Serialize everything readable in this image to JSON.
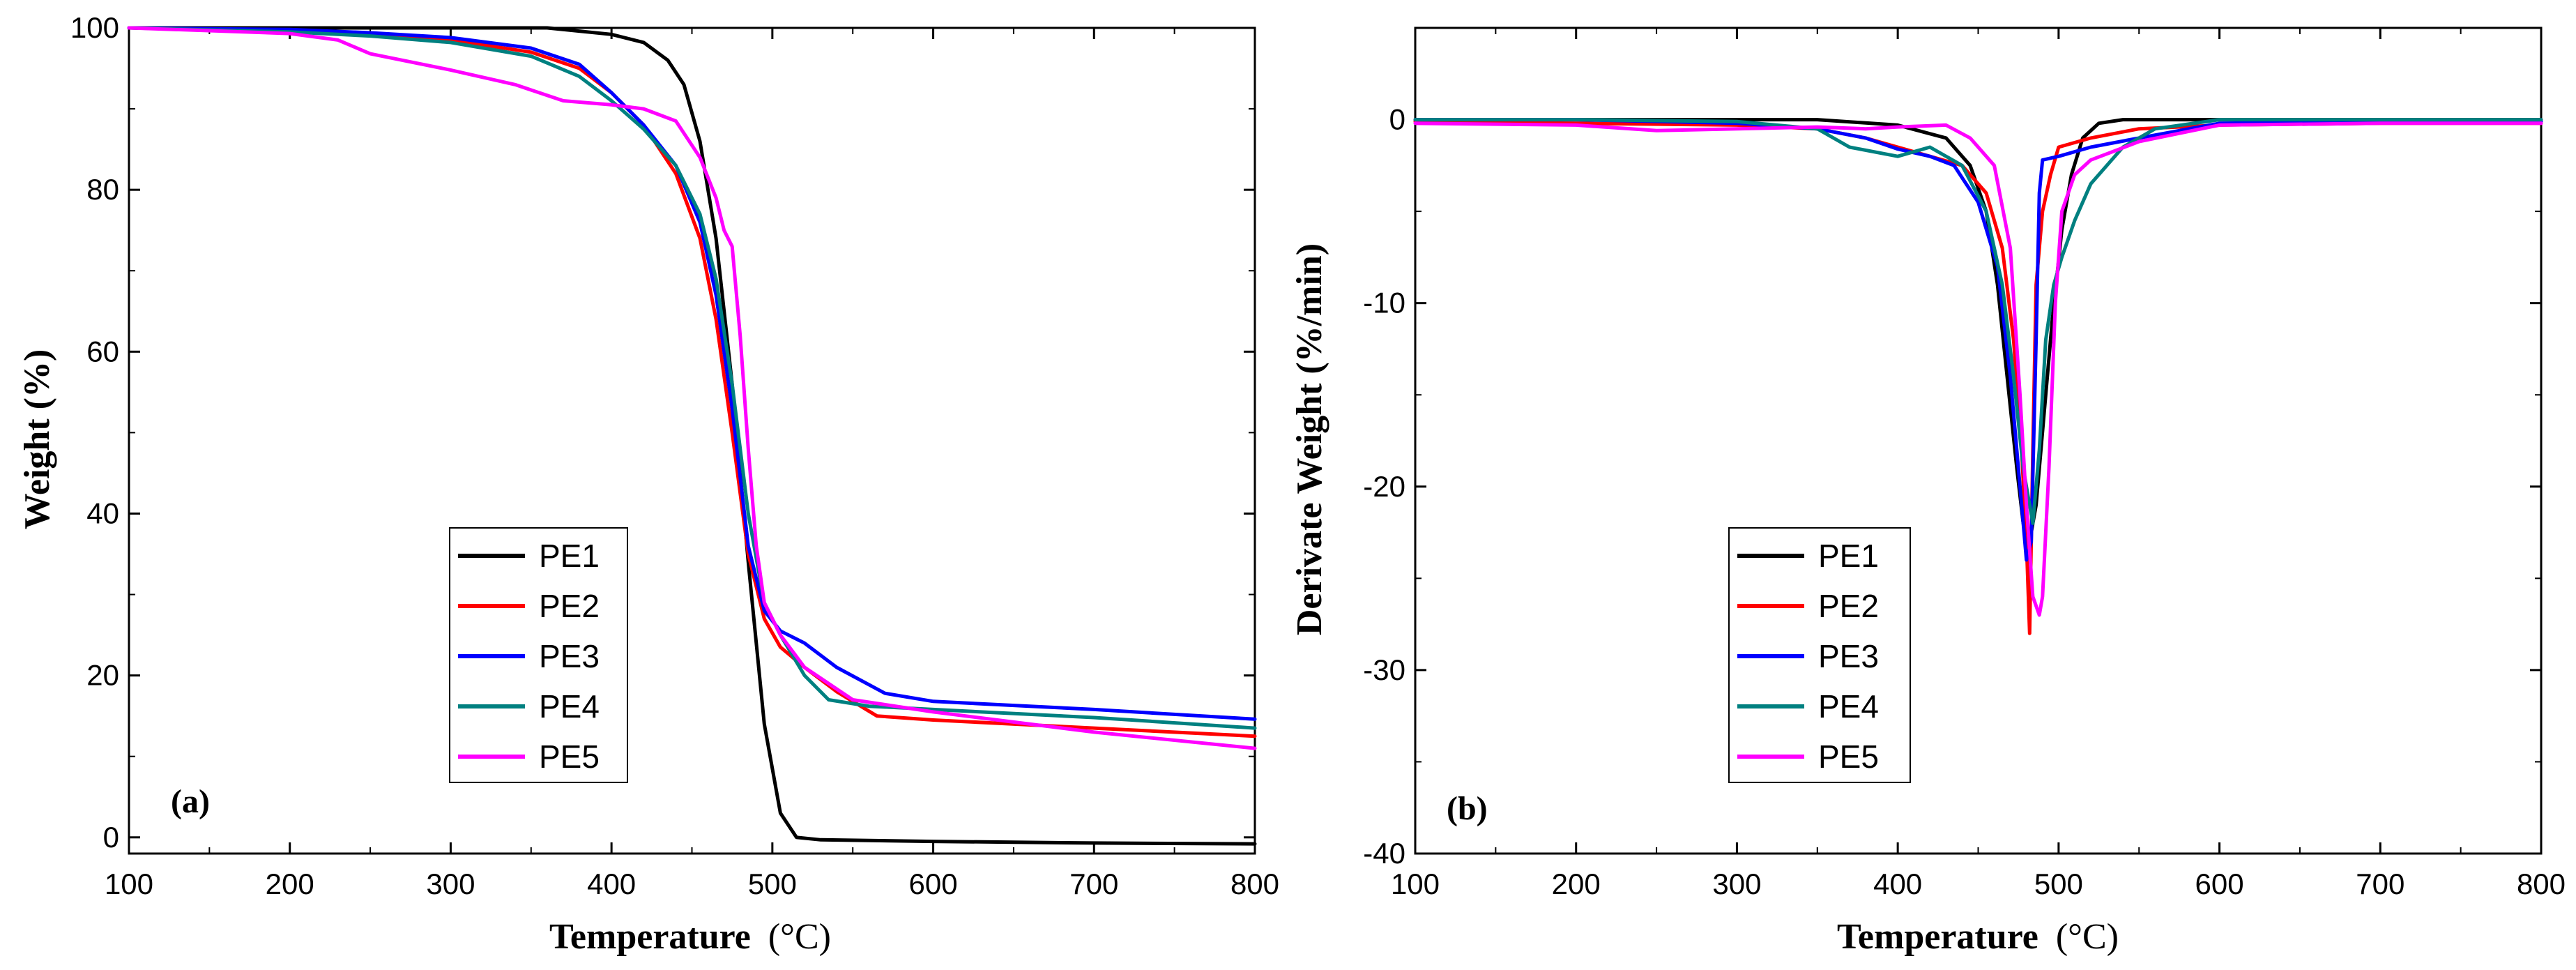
{
  "chart_data": [
    {
      "type": "line",
      "panel_label": "(a)",
      "xlabel_main": "Temperature",
      "xlabel_unit": "(°C)",
      "ylabel": "Weight (%)",
      "xlim": [
        100,
        800
      ],
      "ylim": [
        -2,
        100
      ],
      "xticks": [
        100,
        200,
        300,
        400,
        500,
        600,
        700,
        800
      ],
      "yticks": [
        0,
        20,
        40,
        60,
        80,
        100
      ],
      "legend_position": "lower-center-left",
      "series": [
        {
          "name": "PE1",
          "color": "#000000",
          "x": [
            100,
            200,
            300,
            360,
            400,
            420,
            435,
            445,
            455,
            465,
            475,
            485,
            495,
            505,
            515,
            530,
            600,
            700,
            800
          ],
          "y": [
            100,
            100,
            100,
            100,
            99.2,
            98.2,
            96,
            93,
            86,
            74,
            56,
            34,
            14,
            3,
            0,
            -0.3,
            -0.5,
            -0.7,
            -0.8
          ]
        },
        {
          "name": "PE2",
          "color": "#ff0000",
          "x": [
            100,
            200,
            250,
            300,
            350,
            380,
            400,
            420,
            440,
            455,
            465,
            475,
            485,
            495,
            505,
            520,
            540,
            565,
            600,
            700,
            800
          ],
          "y": [
            100,
            99.7,
            99.2,
            98.5,
            97,
            95,
            92,
            88,
            82,
            74,
            64,
            50,
            35,
            27,
            23.5,
            21,
            18,
            15,
            14.5,
            13.5,
            12.5
          ]
        },
        {
          "name": "PE3",
          "color": "#0000ff",
          "x": [
            100,
            200,
            250,
            300,
            350,
            380,
            400,
            420,
            440,
            455,
            465,
            475,
            485,
            495,
            505,
            520,
            540,
            570,
            600,
            700,
            800
          ],
          "y": [
            100,
            99.8,
            99.4,
            98.8,
            97.5,
            95.5,
            92,
            88,
            83,
            76,
            67,
            53,
            36,
            28,
            25.5,
            24,
            21,
            17.8,
            16.8,
            15.8,
            14.6
          ]
        },
        {
          "name": "PE4",
          "color": "#008080",
          "x": [
            100,
            200,
            250,
            300,
            350,
            380,
            400,
            420,
            440,
            455,
            465,
            475,
            485,
            495,
            505,
            520,
            535,
            560,
            600,
            700,
            800
          ],
          "y": [
            100,
            99.5,
            99,
            98.2,
            96.5,
            94,
            91,
            87.5,
            83,
            77,
            69,
            56,
            40,
            29,
            25,
            20,
            17,
            16.2,
            15.8,
            14.8,
            13.5
          ]
        },
        {
          "name": "PE5",
          "color": "#ff00ff",
          "x": [
            100,
            200,
            230,
            250,
            300,
            340,
            370,
            400,
            420,
            440,
            455,
            465,
            470,
            475,
            480,
            485,
            490,
            495,
            505,
            520,
            550,
            600,
            700,
            800
          ],
          "y": [
            100,
            99.3,
            98.5,
            96.8,
            94.8,
            93,
            91,
            90.5,
            90,
            88.5,
            84,
            79,
            75,
            73,
            62,
            48,
            36,
            29,
            25,
            21,
            17,
            15.5,
            13,
            11
          ]
        }
      ]
    },
    {
      "type": "line",
      "panel_label": "(b)",
      "xlabel_main": "Temperature",
      "xlabel_unit": "(°C)",
      "ylabel": "Derivate Weight (%/min)",
      "xlim": [
        100,
        800
      ],
      "ylim": [
        -40,
        5
      ],
      "xticks": [
        100,
        200,
        300,
        400,
        500,
        600,
        700,
        800
      ],
      "yticks": [
        -40,
        -30,
        -20,
        -10,
        0
      ],
      "legend_position": "lower-center-left",
      "series": [
        {
          "name": "PE1",
          "color": "#000000",
          "x": [
            100,
            200,
            300,
            350,
            400,
            430,
            445,
            455,
            462,
            468,
            474,
            478,
            482,
            486,
            490,
            496,
            502,
            508,
            515,
            525,
            540,
            600,
            700,
            800
          ],
          "y": [
            0,
            0,
            0,
            0,
            -0.3,
            -1,
            -2.5,
            -5,
            -9,
            -14,
            -19,
            -22,
            -23,
            -21,
            -17,
            -11,
            -6,
            -3,
            -1,
            -0.2,
            0,
            0,
            0,
            0
          ]
        },
        {
          "name": "PE2",
          "color": "#ff0000",
          "x": [
            100,
            200,
            300,
            350,
            380,
            400,
            420,
            440,
            455,
            465,
            472,
            477,
            480,
            482,
            484,
            486,
            490,
            495,
            500,
            520,
            550,
            600,
            700,
            800
          ],
          "y": [
            -0.1,
            -0.2,
            -0.3,
            -0.5,
            -1,
            -1.5,
            -2,
            -2.5,
            -4,
            -7,
            -12,
            -18,
            -23,
            -28,
            -18,
            -9,
            -5,
            -3,
            -1.5,
            -1,
            -0.5,
            -0.3,
            -0.2,
            -0.2
          ]
        },
        {
          "name": "PE3",
          "color": "#0000ff",
          "x": [
            100,
            200,
            300,
            350,
            380,
            400,
            420,
            435,
            450,
            462,
            470,
            476,
            480,
            483,
            486,
            488,
            490,
            500,
            520,
            550,
            600,
            700,
            800
          ],
          "y": [
            0,
            0,
            -0.2,
            -0.5,
            -1,
            -1.6,
            -2,
            -2.5,
            -4.5,
            -8,
            -14,
            -20,
            -24,
            -23,
            -12,
            -4,
            -2.2,
            -2,
            -1.5,
            -1,
            -0.2,
            -0.1,
            -0.1
          ]
        },
        {
          "name": "PE4",
          "color": "#008080",
          "x": [
            100,
            200,
            300,
            350,
            370,
            400,
            420,
            440,
            455,
            465,
            472,
            478,
            484,
            488,
            492,
            497,
            502,
            510,
            520,
            540,
            560,
            600,
            700,
            800
          ],
          "y": [
            0,
            0,
            -0.1,
            -0.5,
            -1.5,
            -2,
            -1.5,
            -2.5,
            -5,
            -9,
            -14,
            -19,
            -22,
            -18,
            -12,
            -9,
            -7.5,
            -5.5,
            -3.5,
            -1.5,
            -0.5,
            0,
            0,
            0
          ]
        },
        {
          "name": "PE5",
          "color": "#ff00ff",
          "x": [
            100,
            200,
            250,
            300,
            350,
            380,
            400,
            430,
            445,
            460,
            470,
            476,
            480,
            484,
            488,
            490,
            494,
            498,
            502,
            510,
            520,
            550,
            600,
            700,
            800
          ],
          "y": [
            -0.2,
            -0.3,
            -0.6,
            -0.5,
            -0.4,
            -0.5,
            -0.4,
            -0.3,
            -1,
            -2.5,
            -7,
            -15,
            -21,
            -26,
            -27,
            -26,
            -19,
            -10,
            -5,
            -3,
            -2.2,
            -1.2,
            -0.3,
            -0.2,
            -0.2
          ]
        }
      ]
    }
  ]
}
